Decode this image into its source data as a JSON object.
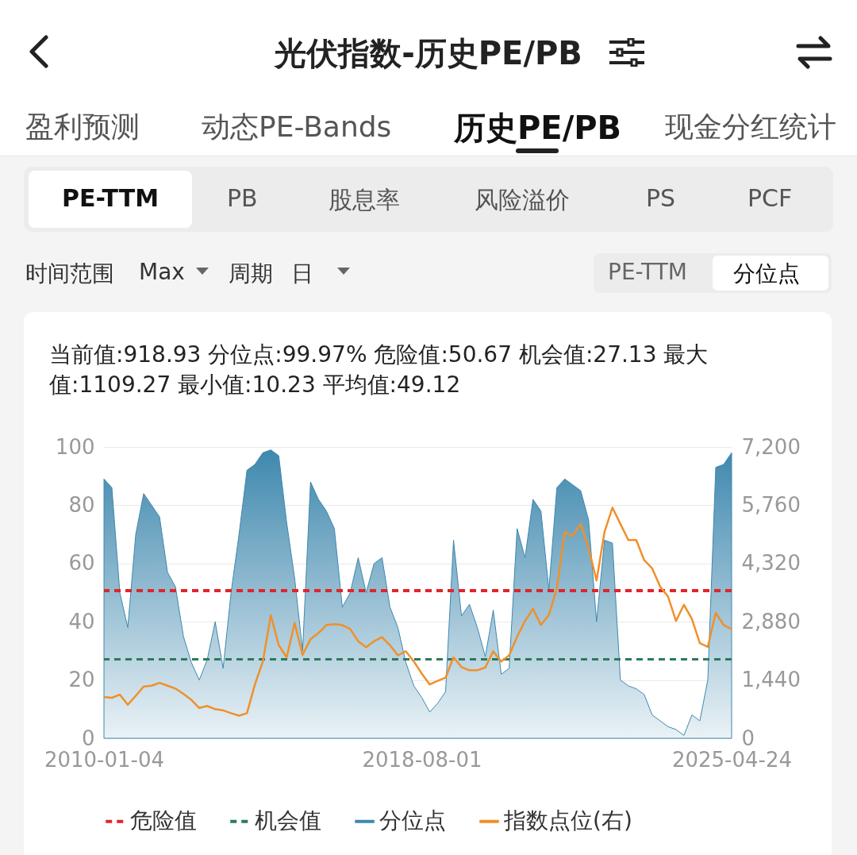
{
  "chart_data": {
    "type": "area",
    "title": "光伏指数-历史PE/PB",
    "annotations": [
      "盈利预测",
      "动态PE-Bands",
      "历史PE/PB",
      "现金分红统计",
      "PE-TTM",
      "PB",
      "股息率",
      "风险溢价",
      "PS",
      "PCF",
      "时间范围",
      "Max",
      "周期",
      "日",
      "PE-TTM",
      "分位点",
      "当前值:918.93 分位点:99.97% 危险值:50.67 机会值:27.13 最大值:1109.27 最小值:10.23 平均值:49.12"
    ],
    "categories": [
      "2010-01-04",
      null,
      null,
      null,
      null,
      null,
      null,
      null,
      null,
      null,
      null,
      null,
      null,
      null,
      null,
      null,
      null,
      null,
      null,
      null,
      null,
      null,
      null,
      null,
      null,
      null,
      null,
      null,
      null,
      null,
      null,
      null,
      null,
      null,
      null,
      null,
      null,
      null,
      null,
      null,
      "2018-08-01",
      null,
      null,
      null,
      null,
      null,
      null,
      null,
      null,
      null,
      null,
      null,
      null,
      null,
      null,
      null,
      null,
      null,
      null,
      null,
      null,
      null,
      null,
      null,
      null,
      null,
      null,
      null,
      null,
      null,
      null,
      null,
      null,
      null,
      null,
      null,
      null,
      null,
      null,
      "2025-04-24"
    ],
    "series": [
      {
        "name": "分位点",
        "type": "area",
        "color": "#3f88ae",
        "values": [
          89,
          86,
          50,
          38,
          70,
          84,
          80,
          76,
          57,
          52,
          35,
          26,
          20,
          27,
          40,
          24,
          50,
          70,
          92,
          94,
          98,
          99,
          97,
          74,
          55,
          30,
          88,
          82,
          78,
          72,
          45,
          50,
          62,
          50,
          60,
          62,
          45,
          38,
          26,
          18,
          14,
          9,
          12,
          16,
          68,
          42,
          46,
          38,
          28,
          44,
          22,
          24,
          72,
          62,
          82,
          78,
          51,
          86,
          89,
          87,
          85,
          75,
          40,
          68,
          67,
          20,
          18,
          17,
          15,
          8,
          6,
          4,
          3,
          1,
          8,
          6,
          20,
          93,
          94,
          98
        ]
      },
      {
        "name": "指数点位(右)",
        "type": "line",
        "axis": "y2",
        "color": "#f0902a",
        "values": [
          1020,
          1000,
          1080,
          830,
          1050,
          1280,
          1300,
          1370,
          1300,
          1230,
          1100,
          950,
          750,
          800,
          720,
          690,
          620,
          560,
          620,
          1330,
          1900,
          3040,
          2300,
          2000,
          2850,
          2060,
          2450,
          2600,
          2800,
          2820,
          2800,
          2700,
          2400,
          2250,
          2400,
          2500,
          2300,
          2050,
          2150,
          1900,
          1600,
          1330,
          1420,
          1500,
          2000,
          1760,
          1680,
          1680,
          1750,
          2150,
          1900,
          2050,
          2510,
          2900,
          3200,
          2800,
          3050,
          3700,
          5100,
          5000,
          5300,
          4700,
          3900,
          5100,
          5700,
          5300,
          4900,
          4900,
          4400,
          4200,
          3750,
          3500,
          2900,
          3300,
          2950,
          2350,
          2260,
          3100,
          2800,
          2700
        ]
      }
    ],
    "ylim": [
      0,
      100
    ],
    "yticks": [
      0,
      20,
      40,
      60,
      80,
      100
    ],
    "y2lim": [
      0,
      7200
    ],
    "y2ticks": [
      0,
      {
        "value": 1440,
        "label": "1,440"
      },
      {
        "value": 2880,
        "label": "2,880"
      },
      {
        "value": 4320,
        "label": "4,320"
      },
      {
        "value": 5760,
        "label": "5,760"
      },
      {
        "value": 7200,
        "label": "7,200"
      }
    ],
    "ref_lines": [
      {
        "axis": "y",
        "value": 50.67,
        "label": "危险值",
        "color": "#e0262b",
        "line_style": "dashed"
      },
      {
        "axis": "y",
        "value": 27.13,
        "label": "机会值",
        "color": "#2d7a5c",
        "line_style": "dashed"
      }
    ],
    "grid": "y",
    "legend": "bottom"
  }
}
